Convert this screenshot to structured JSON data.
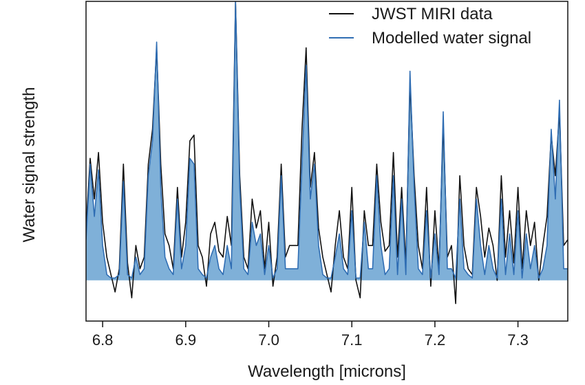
{
  "chart_data": {
    "type": "line",
    "title": "",
    "xlabel": "Wavelength [microns]",
    "ylabel": "Water signal strength",
    "xlim": [
      6.78,
      7.36
    ],
    "ylim": [
      -0.35,
      2.4
    ],
    "x_ticks": [
      6.8,
      6.9,
      7.0,
      7.1,
      7.2,
      7.3
    ],
    "x_tick_labels": [
      "6.8",
      "6.9",
      "7.0",
      "7.1",
      "7.2",
      "7.3"
    ],
    "y_ticks_shown": false,
    "grid": false,
    "legend_position": "top-right",
    "colors": {
      "data": "#111111",
      "model_line": "#2f6db3",
      "model_fill": "#7fb0d8"
    },
    "series": [
      {
        "name": "JWST MIRI data",
        "style": "black-line",
        "x": [
          6.78,
          6.785,
          6.79,
          6.795,
          6.8,
          6.805,
          6.81,
          6.815,
          6.82,
          6.825,
          6.83,
          6.835,
          6.84,
          6.845,
          6.85,
          6.855,
          6.86,
          6.865,
          6.87,
          6.875,
          6.88,
          6.885,
          6.89,
          6.895,
          6.9,
          6.905,
          6.91,
          6.915,
          6.92,
          6.925,
          6.93,
          6.935,
          6.94,
          6.945,
          6.95,
          6.955,
          6.96,
          6.965,
          6.97,
          6.975,
          6.98,
          6.985,
          6.99,
          6.995,
          7.0,
          7.005,
          7.01,
          7.015,
          7.02,
          7.025,
          7.03,
          7.035,
          7.04,
          7.045,
          7.05,
          7.055,
          7.06,
          7.065,
          7.07,
          7.075,
          7.08,
          7.085,
          7.09,
          7.095,
          7.1,
          7.105,
          7.11,
          7.115,
          7.12,
          7.125,
          7.13,
          7.135,
          7.14,
          7.145,
          7.15,
          7.155,
          7.16,
          7.165,
          7.17,
          7.175,
          7.18,
          7.185,
          7.19,
          7.195,
          7.2,
          7.205,
          7.21,
          7.215,
          7.22,
          7.225,
          7.23,
          7.235,
          7.24,
          7.245,
          7.25,
          7.255,
          7.26,
          7.265,
          7.27,
          7.275,
          7.28,
          7.285,
          7.29,
          7.295,
          7.3,
          7.305,
          7.31,
          7.315,
          7.32,
          7.325,
          7.33,
          7.335,
          7.34,
          7.345,
          7.35,
          7.355,
          7.36
        ],
        "y": [
          0.45,
          1.05,
          0.7,
          1.1,
          0.5,
          0.2,
          0.05,
          -0.1,
          0.1,
          1.0,
          0.15,
          -0.15,
          0.3,
          0.1,
          0.2,
          1.0,
          1.3,
          2.0,
          1.0,
          0.4,
          0.3,
          0.1,
          0.8,
          0.2,
          0.5,
          1.2,
          1.25,
          0.3,
          0.2,
          -0.05,
          0.4,
          0.5,
          0.25,
          0.2,
          0.55,
          0.3,
          2.4,
          0.9,
          0.2,
          0.1,
          0.7,
          0.45,
          0.6,
          0.1,
          0.5,
          -0.05,
          0.2,
          1.0,
          0.2,
          0.3,
          0.3,
          0.3,
          1.3,
          2.0,
          0.8,
          1.1,
          0.45,
          0.2,
          0.05,
          -0.1,
          0.3,
          0.6,
          0.2,
          0.1,
          0.8,
          0.0,
          -0.15,
          0.6,
          0.3,
          0.3,
          1.0,
          0.5,
          0.25,
          0.3,
          1.1,
          0.2,
          0.8,
          0.15,
          1.7,
          0.9,
          0.3,
          0.1,
          0.8,
          -0.05,
          0.6,
          0.1,
          1.35,
          0.2,
          0.3,
          -0.2,
          0.9,
          0.3,
          0.1,
          0.05,
          0.8,
          0.55,
          0.2,
          0.45,
          0.3,
          0.0,
          0.9,
          0.2,
          0.6,
          0.15,
          0.8,
          0.1,
          0.6,
          0.3,
          0.5,
          0.0,
          0.3,
          0.55,
          1.25,
          0.9,
          1.45,
          0.3,
          0.35
        ]
      },
      {
        "name": "Modelled water signal",
        "style": "blue-line-filled",
        "x": [
          6.78,
          6.785,
          6.79,
          6.795,
          6.8,
          6.805,
          6.81,
          6.815,
          6.82,
          6.825,
          6.83,
          6.835,
          6.84,
          6.845,
          6.85,
          6.855,
          6.86,
          6.865,
          6.87,
          6.875,
          6.88,
          6.885,
          6.89,
          6.895,
          6.9,
          6.905,
          6.91,
          6.915,
          6.92,
          6.925,
          6.93,
          6.935,
          6.94,
          6.945,
          6.95,
          6.955,
          6.96,
          6.965,
          6.97,
          6.975,
          6.98,
          6.985,
          6.99,
          6.995,
          7.0,
          7.005,
          7.01,
          7.015,
          7.02,
          7.025,
          7.03,
          7.035,
          7.04,
          7.045,
          7.05,
          7.055,
          7.06,
          7.065,
          7.07,
          7.075,
          7.08,
          7.085,
          7.09,
          7.095,
          7.1,
          7.105,
          7.11,
          7.115,
          7.12,
          7.125,
          7.13,
          7.135,
          7.14,
          7.145,
          7.15,
          7.155,
          7.16,
          7.165,
          7.17,
          7.175,
          7.18,
          7.185,
          7.19,
          7.195,
          7.2,
          7.205,
          7.21,
          7.215,
          7.22,
          7.225,
          7.23,
          7.235,
          7.24,
          7.245,
          7.25,
          7.255,
          7.26,
          7.265,
          7.27,
          7.275,
          7.28,
          7.285,
          7.29,
          7.295,
          7.3,
          7.305,
          7.31,
          7.315,
          7.32,
          7.325,
          7.33,
          7.335,
          7.34,
          7.345,
          7.35,
          7.355,
          7.36
        ],
        "y": [
          0.35,
          1.0,
          0.55,
          0.95,
          0.3,
          0.05,
          0.02,
          0.02,
          0.05,
          0.85,
          0.05,
          0.02,
          0.2,
          0.05,
          0.1,
          0.9,
          1.2,
          2.05,
          0.8,
          0.2,
          0.1,
          0.05,
          0.7,
          0.1,
          0.3,
          1.05,
          1.0,
          0.1,
          0.05,
          0.02,
          0.2,
          0.3,
          0.1,
          0.05,
          0.3,
          0.1,
          2.4,
          0.8,
          0.1,
          0.05,
          0.5,
          0.3,
          0.4,
          0.05,
          0.3,
          0.02,
          0.1,
          0.9,
          0.1,
          0.1,
          0.1,
          0.1,
          1.0,
          1.85,
          0.7,
          1.0,
          0.3,
          0.05,
          0.02,
          0.02,
          0.2,
          0.4,
          0.1,
          0.05,
          0.6,
          0.02,
          0.02,
          0.5,
          0.1,
          0.1,
          0.9,
          0.3,
          0.05,
          0.1,
          0.9,
          0.05,
          0.7,
          0.05,
          1.8,
          0.8,
          0.1,
          0.05,
          0.6,
          0.02,
          0.4,
          0.05,
          1.45,
          0.1,
          0.1,
          0.02,
          0.7,
          0.1,
          0.05,
          0.02,
          0.7,
          0.3,
          0.05,
          0.3,
          0.1,
          0.02,
          0.7,
          0.05,
          0.4,
          0.05,
          0.6,
          0.02,
          0.4,
          0.1,
          0.3,
          0.02,
          0.1,
          0.3,
          1.3,
          0.7,
          1.55,
          0.1,
          0.1
        ]
      }
    ]
  }
}
